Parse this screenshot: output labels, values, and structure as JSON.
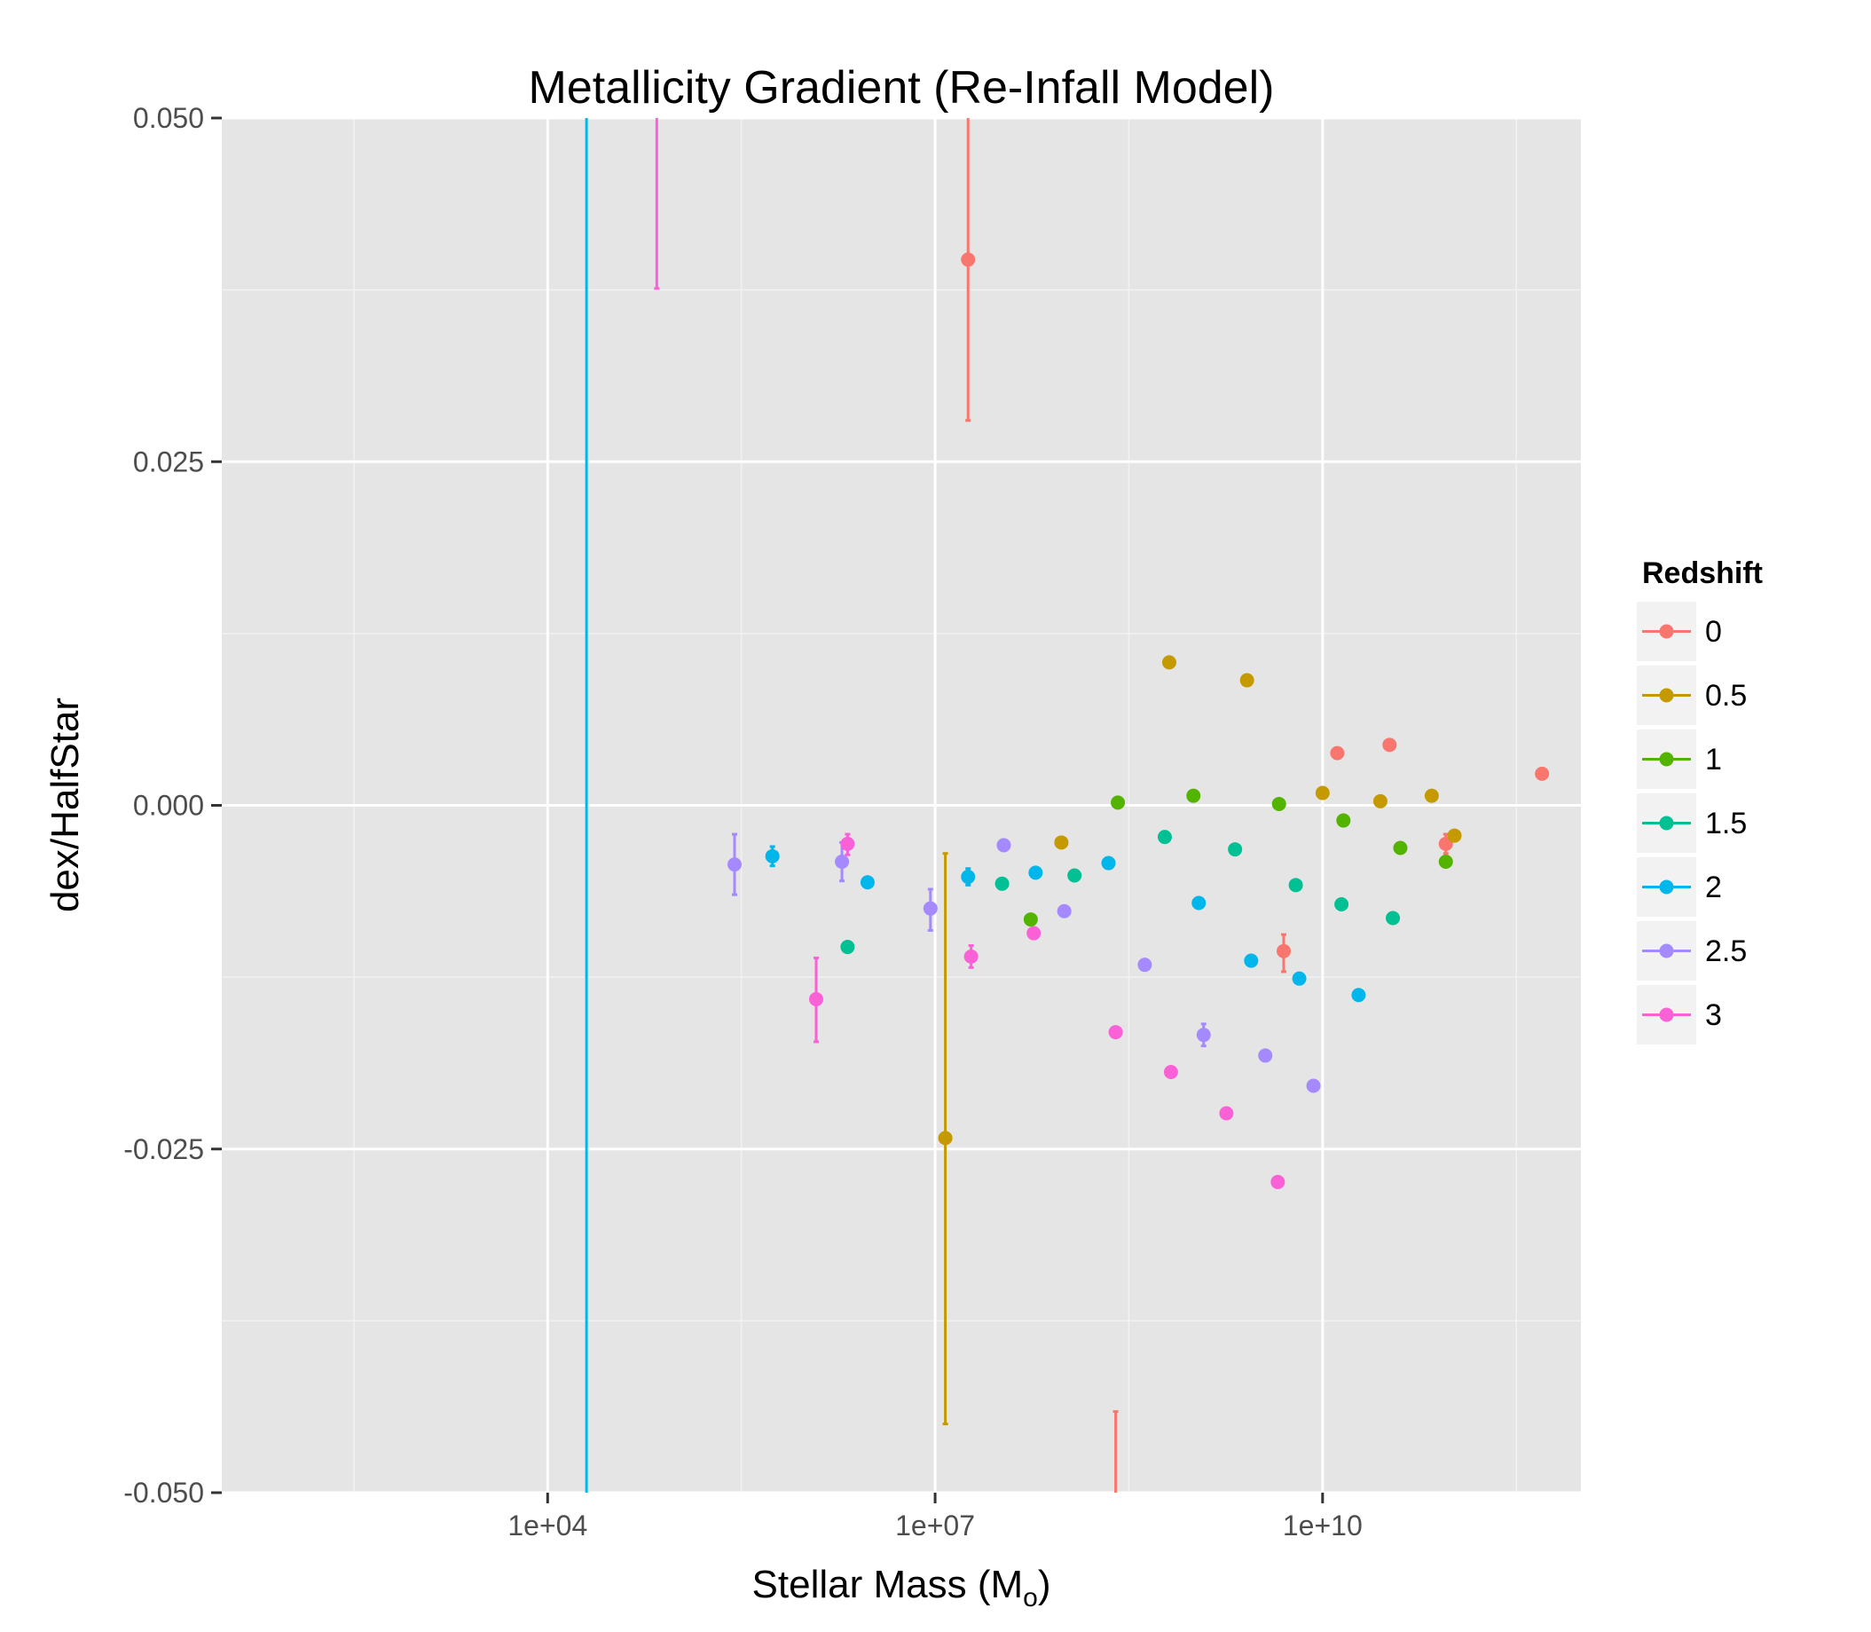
{
  "chart_data": {
    "type": "scatter",
    "title": "Metallicity Gradient (Re-Infall Model)",
    "xlabel": "Stellar Mass (M",
    "xlabel_sub": "o",
    "xlabel_close": ")",
    "ylabel": "dex/HalfStar",
    "x_scale": "log10",
    "xlim": [
      30,
      1000000000000.0
    ],
    "ylim": [
      -0.05,
      0.05
    ],
    "x_ticks": [
      {
        "value": 10000.0,
        "label": "1e+04"
      },
      {
        "value": 10000000.0,
        "label": "1e+07"
      },
      {
        "value": 10000000000.0,
        "label": "1e+10"
      }
    ],
    "y_ticks": [
      {
        "value": 0.05,
        "label": "0.050"
      },
      {
        "value": 0.025,
        "label": "0.025"
      },
      {
        "value": 0.0,
        "label": "0.000"
      },
      {
        "value": -0.025,
        "label": "-0.025"
      },
      {
        "value": -0.05,
        "label": "-0.050"
      }
    ],
    "grid": true,
    "legend": {
      "title": "Redshift",
      "placement": "right",
      "entries": [
        "0",
        "0.5",
        "1",
        "1.5",
        "2",
        "2.5",
        "3"
      ]
    },
    "series": [
      {
        "name": "0",
        "color": "#F8766D",
        "points": [
          {
            "x": 18000000.0,
            "y": 0.0397,
            "ymin": 0.028,
            "ymax": 0.05
          },
          {
            "x": 250000000.0,
            "y": -0.055,
            "ymin": -0.06,
            "ymax": -0.0441
          },
          {
            "x": 5000000000.0,
            "y": -0.0106,
            "ymin": -0.0121,
            "ymax": -0.0094
          },
          {
            "x": 13000000000.0,
            "y": 0.0038
          },
          {
            "x": 33000000000.0,
            "y": 0.0044
          },
          {
            "x": 90000000000.0,
            "y": -0.0028,
            "ymin": -0.0035,
            "ymax": -0.0021
          },
          {
            "x": 500000000000.0,
            "y": 0.0023
          }
        ]
      },
      {
        "name": "0.5",
        "color": "#C49A00",
        "points": [
          {
            "x": 12000000.0,
            "y": -0.0242,
            "ymin": -0.045,
            "ymax": -0.0035
          },
          {
            "x": 95000000.0,
            "y": -0.0027
          },
          {
            "x": 650000000.0,
            "y": 0.0104
          },
          {
            "x": 2600000000.0,
            "y": 0.0091
          },
          {
            "x": 10000000000.0,
            "y": 0.0009
          },
          {
            "x": 28000000000.0,
            "y": 0.0003
          },
          {
            "x": 70000000000.0,
            "y": 0.0007
          },
          {
            "x": 105000000000.0,
            "y": -0.0022
          }
        ]
      },
      {
        "name": "1",
        "color": "#53B400",
        "points": [
          {
            "x": 55000000.0,
            "y": -0.0083
          },
          {
            "x": 260000000.0,
            "y": 0.0002
          },
          {
            "x": 1000000000.0,
            "y": 0.0007
          },
          {
            "x": 4600000000.0,
            "y": 0.0001
          },
          {
            "x": 14500000000.0,
            "y": -0.0011
          },
          {
            "x": 40000000000.0,
            "y": -0.0031
          },
          {
            "x": 90000000000.0,
            "y": -0.0041
          }
        ]
      },
      {
        "name": "1.5",
        "color": "#00C094",
        "points": [
          {
            "x": 2100000.0,
            "y": -0.0103
          },
          {
            "x": 33000000.0,
            "y": -0.0057
          },
          {
            "x": 120000000.0,
            "y": -0.0051
          },
          {
            "x": 600000000.0,
            "y": -0.0023
          },
          {
            "x": 2100000000.0,
            "y": -0.0032
          },
          {
            "x": 6200000000.0,
            "y": -0.0058
          },
          {
            "x": 14000000000.0,
            "y": -0.0072
          },
          {
            "x": 35000000000.0,
            "y": -0.0082
          }
        ]
      },
      {
        "name": "2",
        "color": "#00B6EB",
        "points": [
          {
            "x": 20000.0,
            "y": 0.05,
            "ymin": -0.06,
            "ymax": 0.06,
            "line_only": true
          },
          {
            "x": 550000.0,
            "y": -0.0037,
            "ymin": -0.0044,
            "ymax": -0.003
          },
          {
            "x": 3000000.0,
            "y": -0.0056
          },
          {
            "x": 18000000.0,
            "y": -0.0052,
            "ymin": -0.0058,
            "ymax": -0.0046
          },
          {
            "x": 60000000.0,
            "y": -0.0049
          },
          {
            "x": 220000000.0,
            "y": -0.0042
          },
          {
            "x": 1100000000.0,
            "y": -0.0071
          },
          {
            "x": 2800000000.0,
            "y": -0.0113
          },
          {
            "x": 6600000000.0,
            "y": -0.0126
          },
          {
            "x": 19000000000.0,
            "y": -0.0138
          }
        ]
      },
      {
        "name": "2.5",
        "color": "#A58AFF",
        "points": [
          {
            "x": 280000.0,
            "y": -0.0043,
            "ymin": -0.0065,
            "ymax": -0.0021
          },
          {
            "x": 1900000.0,
            "y": -0.0041,
            "ymin": -0.0055,
            "ymax": -0.0027
          },
          {
            "x": 9200000.0,
            "y": -0.0075,
            "ymin": -0.0091,
            "ymax": -0.0061
          },
          {
            "x": 34000000.0,
            "y": -0.0029
          },
          {
            "x": 100000000.0,
            "y": -0.0077
          },
          {
            "x": 420000000.0,
            "y": -0.0116
          },
          {
            "x": 1200000000.0,
            "y": -0.0167,
            "ymin": -0.0175,
            "ymax": -0.0159
          },
          {
            "x": 3600000000.0,
            "y": -0.0182
          },
          {
            "x": 8500000000.0,
            "y": -0.0204
          }
        ]
      },
      {
        "name": "3",
        "color": "#FB61D7",
        "points": [
          {
            "x": 70000.0,
            "y": 0.05,
            "ymin": 0.0376,
            "ymax": 0.06,
            "line_only": true
          },
          {
            "x": 1200000.0,
            "y": -0.0141,
            "ymin": -0.0172,
            "ymax": -0.0111
          },
          {
            "x": 2100000.0,
            "y": -0.0028,
            "ymin": -0.0036,
            "ymax": -0.0021
          },
          {
            "x": 19000000.0,
            "y": -0.011,
            "ymin": -0.0118,
            "ymax": -0.0102
          },
          {
            "x": 58000000.0,
            "y": -0.0093
          },
          {
            "x": 250000000.0,
            "y": -0.0165
          },
          {
            "x": 670000000.0,
            "y": -0.0194
          },
          {
            "x": 1800000000.0,
            "y": -0.0224
          },
          {
            "x": 4500000000.0,
            "y": -0.0274
          }
        ]
      }
    ]
  }
}
